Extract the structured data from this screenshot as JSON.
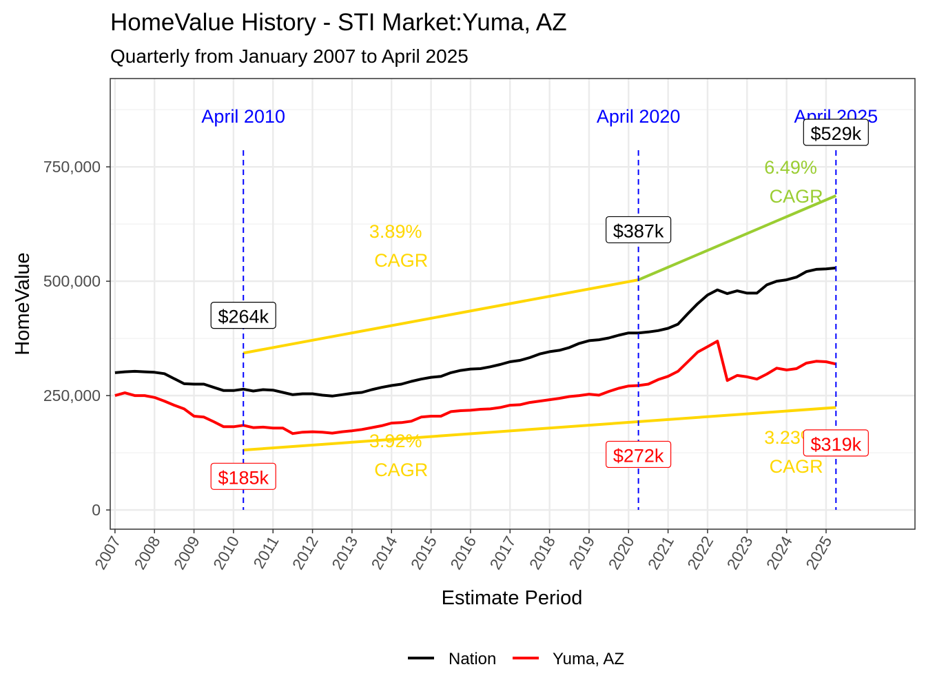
{
  "chart_data": {
    "type": "line",
    "title": "HomeValue History - STI Market:Yuma, AZ",
    "subtitle": "Quarterly from January 2007 to April 2025",
    "xlabel": "Estimate Period",
    "ylabel": "HomeValue",
    "xlim": [
      2006.88,
      2027.25
    ],
    "ylim": [
      -42000,
      943000
    ],
    "grid": true,
    "legend_position": "bottom",
    "x_ticks": [
      "2007",
      "2008",
      "2009",
      "2010",
      "2011",
      "2012",
      "2013",
      "2014",
      "2015",
      "2016",
      "2017",
      "2018",
      "2019",
      "2020",
      "2021",
      "2022",
      "2023",
      "2024",
      "2025"
    ],
    "y_ticks": [
      {
        "value": 0,
        "label": "0"
      },
      {
        "value": 250000,
        "label": "250,000"
      },
      {
        "value": 500000,
        "label": "500,000"
      },
      {
        "value": 750000,
        "label": "750,000"
      }
    ],
    "x_start": 2007.0,
    "x_step": 0.25,
    "series": [
      {
        "name": "Nation",
        "color": "#000000",
        "values": [
          300000,
          302000,
          303000,
          302000,
          301000,
          298000,
          287000,
          276000,
          275000,
          275000,
          268000,
          261000,
          261000,
          264000,
          260000,
          263000,
          262000,
          257000,
          252000,
          254000,
          254000,
          251000,
          249000,
          252000,
          255000,
          257000,
          263000,
          268000,
          272000,
          275000,
          281000,
          286000,
          290000,
          292000,
          300000,
          305000,
          308000,
          309000,
          313000,
          318000,
          324000,
          327000,
          333000,
          341000,
          346000,
          349000,
          355000,
          364000,
          370000,
          372000,
          376000,
          382000,
          387000,
          387000,
          389000,
          392000,
          397000,
          406000,
          429000,
          451000,
          470000,
          481000,
          473000,
          479000,
          474000,
          474000,
          492000,
          500000,
          503000,
          509000,
          521000,
          526000,
          527000,
          529000
        ]
      },
      {
        "name": "Yuma, AZ",
        "color": "#ff0000",
        "values": [
          250000,
          256000,
          250000,
          250000,
          246000,
          238000,
          229000,
          221000,
          205000,
          203000,
          193000,
          182000,
          182000,
          185000,
          180000,
          181000,
          179000,
          179000,
          167000,
          170000,
          171000,
          170000,
          168000,
          171000,
          173000,
          176000,
          180000,
          184000,
          190000,
          191000,
          194000,
          203000,
          205000,
          205000,
          215000,
          217000,
          218000,
          220000,
          221000,
          224000,
          229000,
          230000,
          235000,
          238000,
          241000,
          244000,
          248000,
          250000,
          253000,
          251000,
          259000,
          266000,
          271000,
          272000,
          275000,
          285000,
          292000,
          303000,
          324000,
          345000,
          357000,
          369000,
          283000,
          294000,
          291000,
          286000,
          297000,
          310000,
          306000,
          309000,
          321000,
          325000,
          324000,
          319000
        ]
      }
    ],
    "cagr_lines": [
      {
        "from": [
          2010.25,
          343000
        ],
        "to": [
          2020.25,
          503000
        ],
        "color": "#ffd700",
        "label": "3.89%",
        "label2": "CAGR",
        "at": [
          2015.15,
          595000
        ]
      },
      {
        "from": [
          2020.25,
          503000
        ],
        "to": [
          2025.25,
          687000
        ],
        "color": "#9acd32",
        "label": "6.49%",
        "label2": "CAGR",
        "at": [
          2025.15,
          735000
        ]
      },
      {
        "from": [
          2010.25,
          131000
        ],
        "to": [
          2025.25,
          224000
        ],
        "color": "#ffd700",
        "label": "3.92%",
        "label2": "CAGR",
        "at": [
          2015.15,
          137000
        ]
      },
      {
        "from": [
          2025.25,
          224000
        ],
        "to": [
          2025.25,
          224000
        ],
        "color": "#ffd700",
        "label": "3.23%",
        "label2": "CAGR",
        "at": [
          2025.15,
          145000
        ]
      }
    ],
    "markers": [
      {
        "x": 2010.25,
        "label": "April 2010"
      },
      {
        "x": 2020.25,
        "label": "April 2020"
      },
      {
        "x": 2025.25,
        "label": "April 2025"
      }
    ],
    "value_labels": [
      {
        "x": 2010.25,
        "y": 424000,
        "text": "$264k",
        "color": "#000000"
      },
      {
        "x": 2020.25,
        "y": 611000,
        "text": "$387k",
        "color": "#000000"
      },
      {
        "x": 2025.25,
        "y": 824000,
        "text": "$529k",
        "color": "#000000"
      },
      {
        "x": 2010.25,
        "y": 72000,
        "text": "$185k",
        "color": "#ff0000"
      },
      {
        "x": 2020.25,
        "y": 120000,
        "text": "$272k",
        "color": "#ff0000"
      },
      {
        "x": 2025.25,
        "y": 145000,
        "text": "$319k",
        "color": "#ff0000"
      }
    ]
  }
}
